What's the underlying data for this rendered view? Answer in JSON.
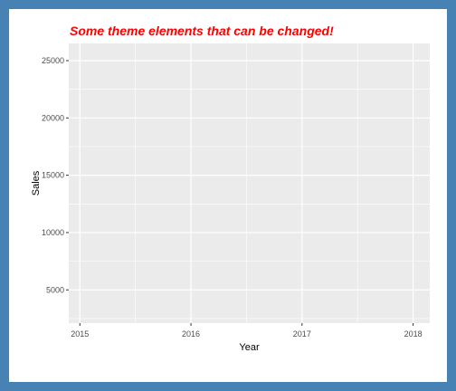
{
  "chart_data": {
    "type": "line",
    "title": "Some theme elements that can be changed!",
    "xlabel": "Year",
    "ylabel": "Sales",
    "x_ticks": [
      2015,
      2016,
      2017,
      2018
    ],
    "y_ticks": [
      5000,
      10000,
      15000,
      20000,
      25000
    ],
    "xlim": [
      2014.9,
      2018.15
    ],
    "ylim": [
      2100,
      26500
    ],
    "series": [],
    "grid": true,
    "colors": {
      "border": "#4682b4",
      "panel_background": "#ebebeb",
      "grid": "#ffffff",
      "title": "#ff0000",
      "axis_text": "#4d4d4d",
      "axis_title": "#000000"
    }
  }
}
